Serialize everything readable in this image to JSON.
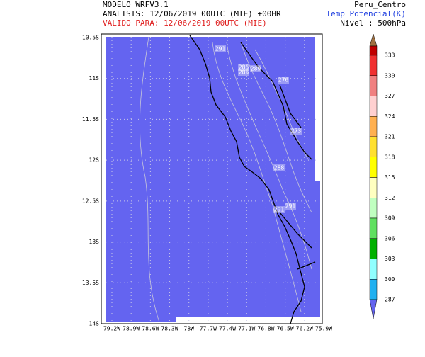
{
  "header": {
    "model": "MODELO WRFV3.1",
    "analysis": "ANALISIS: 12/06/2019 00UTC (MIE) +00HR",
    "valid": "VALIDO PARA: 12/06/2019 00UTC (MIE)",
    "region": "Peru_Centro",
    "variable": "Temp_Potencial(K)",
    "level": "Nivel : 500hPa"
  },
  "map": {
    "lat_labels": [
      "10.5S",
      "11S",
      "11.5S",
      "12S",
      "12.5S",
      "13S",
      "13.5S",
      "14S"
    ],
    "lon_labels": [
      "79.2W",
      "78.9W",
      "78.6W",
      "78.3W",
      "78W",
      "77.7W",
      "77.4W",
      "77.1W",
      "76.8W",
      "76.5W",
      "76.2W",
      "75.9W"
    ],
    "contour_labels": [
      "291",
      "286",
      "286",
      "289",
      "276",
      "273",
      "288",
      "291",
      "291"
    ]
  },
  "colorbar": {
    "labels": [
      "333",
      "330",
      "327",
      "324",
      "321",
      "318",
      "315",
      "312",
      "309",
      "306",
      "303",
      "300",
      "287"
    ]
  }
}
